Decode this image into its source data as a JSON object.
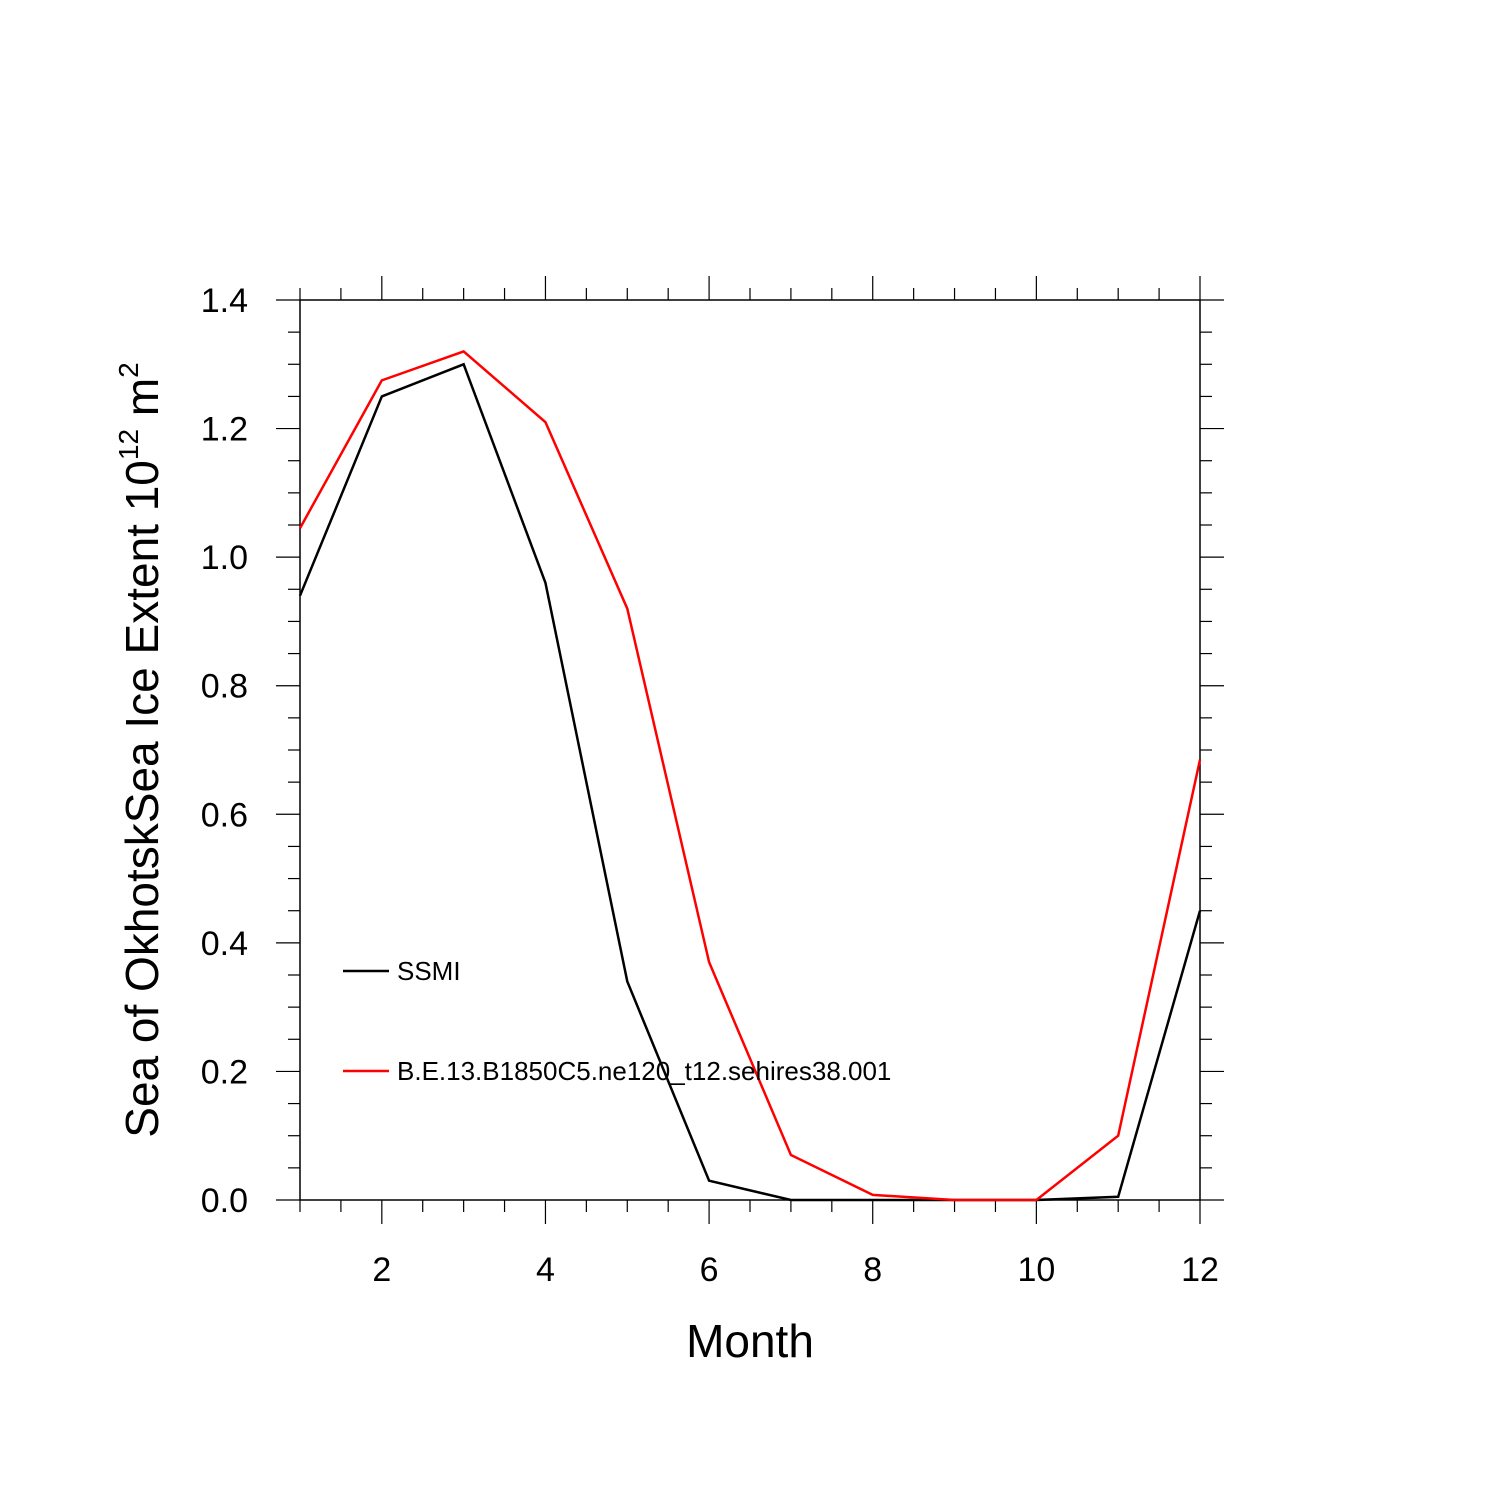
{
  "chart_data": {
    "type": "line",
    "title": "",
    "xlabel": "Month",
    "ylabel_main": "Sea of OkhotskSea Ice Extent 10",
    "ylabel_sup": "12",
    "ylabel_unit": " m",
    "ylabel_sup2": "2",
    "xlim": [
      1,
      12
    ],
    "ylim": [
      0,
      1.4
    ],
    "x_ticks": [
      2,
      4,
      6,
      8,
      10,
      12
    ],
    "x_tick_labels": [
      "2",
      "4",
      "6",
      "8",
      "10",
      "12"
    ],
    "y_ticks": [
      0,
      0.2,
      0.4,
      0.6,
      0.8,
      1.0,
      1.2,
      1.4
    ],
    "y_tick_labels": [
      "0.0",
      "0.2",
      "0.4",
      "0.6",
      "0.8",
      "1.0",
      "1.2",
      "1.4"
    ],
    "x": [
      1,
      2,
      3,
      4,
      5,
      6,
      7,
      8,
      9,
      10,
      11,
      12
    ],
    "series": [
      {
        "name": "SSMI",
        "color": "#000000",
        "values": [
          0.94,
          1.25,
          1.3,
          0.96,
          0.34,
          0.03,
          0.0,
          0.0,
          0.0,
          0.0,
          0.005,
          0.45
        ]
      },
      {
        "name": "B.E.13.B1850C5.ne120_t12.sehires38.001",
        "color": "#ff0000",
        "values": [
          1.045,
          1.275,
          1.32,
          1.21,
          0.92,
          0.37,
          0.07,
          0.008,
          0.0,
          0.0,
          0.1,
          0.685
        ]
      }
    ],
    "grid": false,
    "legend_position": "lower-left inside"
  }
}
